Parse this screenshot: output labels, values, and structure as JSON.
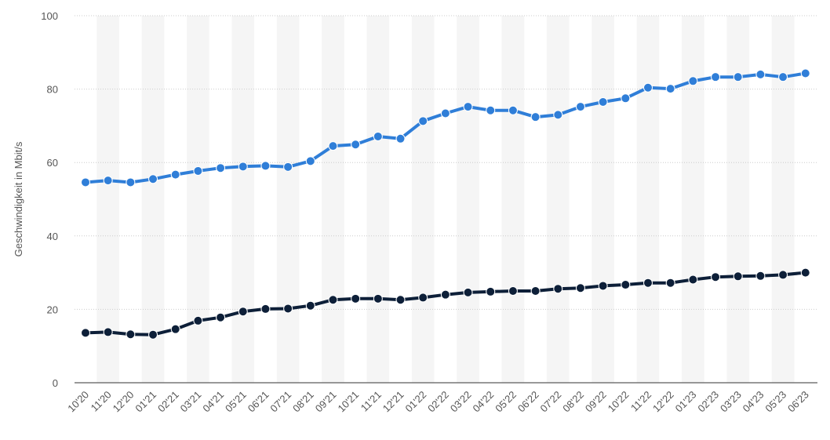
{
  "chart_data": {
    "type": "line",
    "title": "",
    "xlabel": "",
    "ylabel": "Geschwindigkeit in Mbit/s",
    "ylim": [
      0,
      100
    ],
    "yticks": [
      0,
      20,
      40,
      60,
      80,
      100
    ],
    "grid": true,
    "categories": [
      "10'20",
      "11'20",
      "12'20",
      "01'21",
      "02'21",
      "03'21",
      "04'21",
      "05'21",
      "06'21",
      "07'21",
      "08'21",
      "09'21",
      "10'21",
      "11'21",
      "12'21",
      "01'22",
      "02'22",
      "03'22",
      "04'22",
      "05'22",
      "06'22",
      "07'22",
      "08'22",
      "09'22",
      "10'22",
      "11'22",
      "12'22",
      "01'23",
      "02'23",
      "03'23",
      "04'23",
      "05'23",
      "06'23"
    ],
    "series": [
      {
        "color": "#2f7ed8",
        "values": [
          54.6,
          55.1,
          54.6,
          55.5,
          56.7,
          57.7,
          58.5,
          58.9,
          59.1,
          58.8,
          60.4,
          64.5,
          64.9,
          67.1,
          66.5,
          71.3,
          73.4,
          75.2,
          74.2,
          74.2,
          72.4,
          73.0,
          75.2,
          76.5,
          77.5,
          80.4,
          80.1,
          82.2,
          83.3,
          83.3,
          84.0,
          83.3,
          84.3
        ]
      },
      {
        "color": "#0d1f38",
        "values": [
          13.6,
          13.8,
          13.2,
          13.1,
          14.6,
          16.9,
          17.8,
          19.4,
          20.1,
          20.2,
          21.0,
          22.6,
          22.9,
          22.9,
          22.6,
          23.2,
          24.0,
          24.6,
          24.8,
          25.0,
          25.0,
          25.6,
          25.8,
          26.4,
          26.7,
          27.2,
          27.2,
          28.1,
          28.8,
          29.0,
          29.1,
          29.4,
          30.0
        ]
      }
    ]
  }
}
